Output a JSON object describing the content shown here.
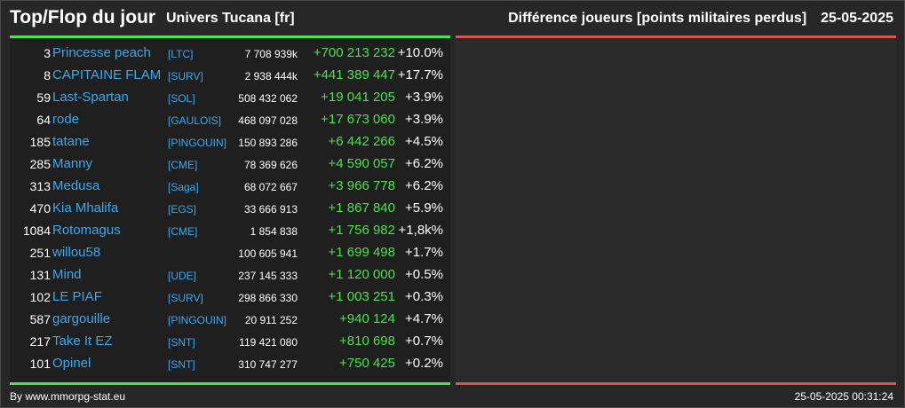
{
  "header": {
    "title": "Top/Flop du jour",
    "universe": "Univers Tucana [fr]",
    "metric": "Différence joueurs [points militaires perdus]",
    "date": "25-05-2025"
  },
  "colors": {
    "name": "#3ba9ee",
    "positive": "#4ee04e",
    "top_line": "#4ee04e",
    "flop_line": "#d9534f"
  },
  "rows": [
    {
      "rank": "3",
      "name": "Princesse peach",
      "alliance": "[LTC]",
      "points": "7 708 939k",
      "diff": "+700 213 232",
      "pct": "+10.0%"
    },
    {
      "rank": "8",
      "name": "CAPITAINE FLAM",
      "alliance": "[SURV]",
      "points": "2 938 444k",
      "diff": "+441 389 447",
      "pct": "+17.7%"
    },
    {
      "rank": "59",
      "name": "Last-Spartan",
      "alliance": "[SOL]",
      "points": "508 432 062",
      "diff": "+19 041 205",
      "pct": "+3.9%"
    },
    {
      "rank": "64",
      "name": "rode",
      "alliance": "[GAULOIS]",
      "points": "468 097 028",
      "diff": "+17 673 060",
      "pct": "+3.9%"
    },
    {
      "rank": "185",
      "name": "tatane",
      "alliance": "[PINGOUIN]",
      "points": "150 893 286",
      "diff": "+6 442 266",
      "pct": "+4.5%"
    },
    {
      "rank": "285",
      "name": "Manny",
      "alliance": "[CME]",
      "points": "78 369 626",
      "diff": "+4 590 057",
      "pct": "+6.2%"
    },
    {
      "rank": "313",
      "name": "Medusa",
      "alliance": "[Saga]",
      "points": "68 072 667",
      "diff": "+3 966 778",
      "pct": "+6.2%"
    },
    {
      "rank": "470",
      "name": "Kia Mhalifa",
      "alliance": "[EGS]",
      "points": "33 666 913",
      "diff": "+1 867 840",
      "pct": "+5.9%"
    },
    {
      "rank": "1084",
      "name": "Rotomagus",
      "alliance": "[CME]",
      "points": "1 854 838",
      "diff": "+1 756 982",
      "pct": "+1,8k%"
    },
    {
      "rank": "251",
      "name": "willou58",
      "alliance": "",
      "points": "100 605 941",
      "diff": "+1 699 498",
      "pct": "+1.7%"
    },
    {
      "rank": "131",
      "name": "Mind",
      "alliance": "[UDE]",
      "points": "237 145 333",
      "diff": "+1 120 000",
      "pct": "+0.5%"
    },
    {
      "rank": "102",
      "name": "LE PIAF",
      "alliance": "[SURV]",
      "points": "298 866 330",
      "diff": "+1 003 251",
      "pct": "+0.3%"
    },
    {
      "rank": "587",
      "name": "gargouille",
      "alliance": "[PINGOUIN]",
      "points": "20 911 252",
      "diff": "+940 124",
      "pct": "+4.7%"
    },
    {
      "rank": "217",
      "name": "Take It EZ",
      "alliance": "[SNT]",
      "points": "119 421 080",
      "diff": "+810 698",
      "pct": "+0.7%"
    },
    {
      "rank": "101",
      "name": "Opinel",
      "alliance": "[SNT]",
      "points": "310 747 277",
      "diff": "+750 425",
      "pct": "+0.2%"
    }
  ],
  "footer": {
    "credit": "By www.mmorpg-stat.eu",
    "timestamp": "25-05-2025 00:31:24"
  }
}
